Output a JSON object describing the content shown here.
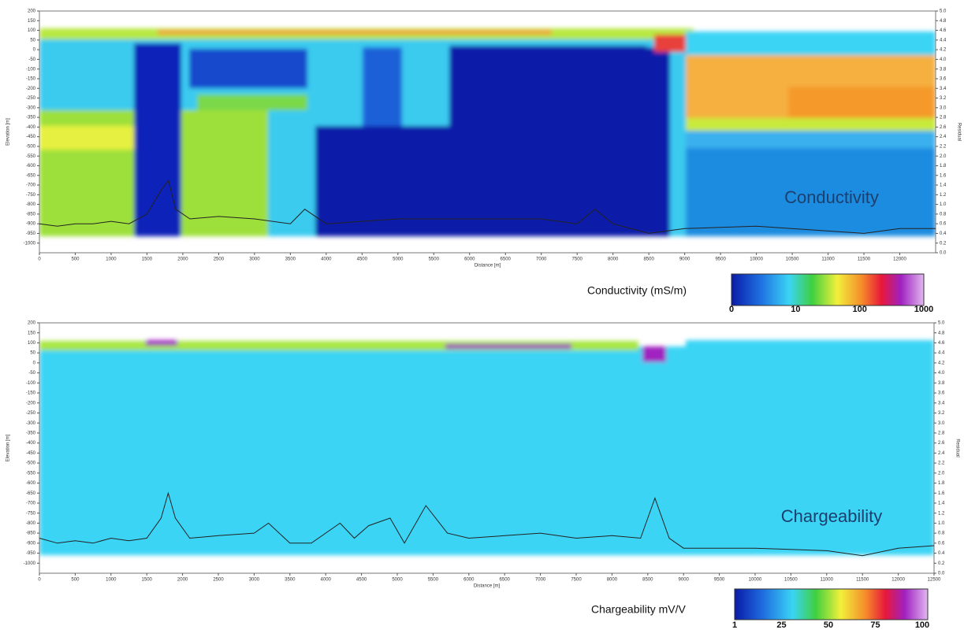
{
  "chart_data": [
    {
      "type": "section",
      "annotation": "Conductivity",
      "xlabel": "Distance [m]",
      "ylabel": "Elevation [m]",
      "y2label": "Residual",
      "xlim": [
        0,
        12500
      ],
      "ylim": [
        -1050,
        200
      ],
      "y2lim": [
        0,
        5
      ],
      "xticks": [
        0,
        500,
        1000,
        1500,
        2000,
        2500,
        3000,
        3500,
        4000,
        4500,
        5000,
        5500,
        6000,
        6500,
        7000,
        7500,
        8000,
        8500,
        9000,
        9500,
        10000,
        10500,
        11000,
        11500,
        12000
      ],
      "yticks": [
        200,
        150,
        100,
        50,
        0,
        -50,
        -100,
        -150,
        -200,
        -250,
        -300,
        -350,
        -400,
        -450,
        -500,
        -550,
        -600,
        -650,
        -700,
        -750,
        -800,
        -850,
        -900,
        -950,
        -1000
      ],
      "y2ticks": [
        {
          "value": 0,
          "label": "0.0"
        },
        0.2,
        0.4,
        0.6,
        0.8,
        {
          "value": 1,
          "label": "1.0"
        },
        1.2,
        1.4,
        1.6,
        1.8,
        {
          "value": 2,
          "label": "2.0"
        },
        2.2,
        2.4,
        2.6,
        2.8,
        {
          "value": 3,
          "label": "3.0"
        },
        3.2,
        3.4,
        3.6,
        3.8,
        {
          "value": 4,
          "label": "4.0"
        },
        4.2,
        4.4,
        4.6,
        4.8,
        {
          "value": 5,
          "label": "5.0"
        }
      ],
      "series": [
        {
          "axis": "y2",
          "color": "#222222",
          "x": [
            0,
            250,
            500,
            750,
            1000,
            1250,
            1500,
            1700,
            1800,
            1900,
            2100,
            2500,
            3000,
            3500,
            3700,
            4000,
            5000,
            6000,
            7000,
            7500,
            7750,
            8000,
            8500,
            9000,
            10000,
            11000,
            11500,
            12000,
            12500
          ],
          "values": [
            0.6,
            0.55,
            0.6,
            0.6,
            0.65,
            0.6,
            0.8,
            1.3,
            1.5,
            0.9,
            0.7,
            0.75,
            0.7,
            0.6,
            0.9,
            0.6,
            0.7,
            0.7,
            0.7,
            0.6,
            0.9,
            0.6,
            0.4,
            0.5,
            0.55,
            0.45,
            0.4,
            0.5,
            0.5
          ]
        }
      ],
      "colorbar": {
        "label": "Conductivity (mS/m)",
        "ticks": [
          0,
          10,
          100,
          1000
        ]
      }
    },
    {
      "type": "section",
      "annotation": "Chargeability",
      "xlabel": "Distance [m]",
      "ylabel": "Elevation [m]",
      "y2label": "Residual",
      "xlim": [
        0,
        12500
      ],
      "ylim": [
        -1050,
        200
      ],
      "y2lim": [
        0,
        5
      ],
      "xticks": [
        0,
        500,
        1000,
        1500,
        2000,
        2500,
        3000,
        3500,
        4000,
        4500,
        5000,
        5500,
        6000,
        6500,
        7000,
        7500,
        8000,
        8500,
        9000,
        9500,
        10000,
        10500,
        11000,
        11500,
        12000,
        12500
      ],
      "yticks": [
        200,
        150,
        100,
        50,
        0,
        -50,
        -100,
        -150,
        -200,
        -250,
        -300,
        -350,
        -400,
        -450,
        -500,
        -550,
        -600,
        -650,
        -700,
        -750,
        -800,
        -850,
        -900,
        -950,
        -1000
      ],
      "y2ticks": [
        {
          "value": 0,
          "label": "0.0"
        },
        0.2,
        0.4,
        0.6,
        0.8,
        {
          "value": 1,
          "label": "1.0"
        },
        1.2,
        1.4,
        1.6,
        1.8,
        {
          "value": 2,
          "label": "2.0"
        },
        2.2,
        2.4,
        2.6,
        2.8,
        {
          "value": 3,
          "label": "3.0"
        },
        3.2,
        3.4,
        3.6,
        3.8,
        {
          "value": 4,
          "label": "4.0"
        },
        4.2,
        4.4,
        4.6,
        4.8,
        {
          "value": 5,
          "label": "5.0"
        }
      ],
      "series": [
        {
          "axis": "y2",
          "color": "#222222",
          "x": [
            0,
            250,
            500,
            750,
            1000,
            1250,
            1500,
            1700,
            1800,
            1900,
            2100,
            2500,
            3000,
            3200,
            3500,
            3800,
            4200,
            4400,
            4600,
            4900,
            5100,
            5400,
            5700,
            6000,
            6500,
            7000,
            7500,
            8000,
            8400,
            8600,
            8800,
            9000,
            10000,
            11000,
            11500,
            12000,
            12500
          ],
          "values": [
            0.7,
            0.6,
            0.65,
            0.6,
            0.7,
            0.65,
            0.7,
            1.1,
            1.6,
            1.1,
            0.7,
            0.75,
            0.8,
            1.0,
            0.6,
            0.6,
            1.0,
            0.7,
            0.95,
            1.1,
            0.6,
            1.35,
            0.8,
            0.7,
            0.75,
            0.8,
            0.7,
            0.75,
            0.7,
            1.5,
            0.7,
            0.5,
            0.5,
            0.45,
            0.35,
            0.5,
            0.55
          ]
        }
      ],
      "colorbar": {
        "label": "Chargeability  mV/V",
        "ticks": [
          1,
          25,
          50,
          75,
          100
        ]
      }
    }
  ]
}
